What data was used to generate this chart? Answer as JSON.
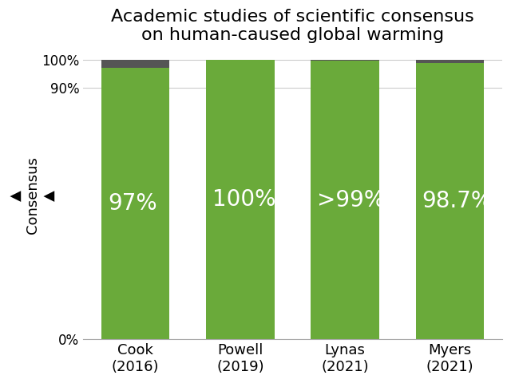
{
  "title": "Academic studies of scientific consensus\non human-caused global warming",
  "categories": [
    "Cook\n(2016)",
    "Powell\n(2019)",
    "Lynas\n(2021)",
    "Myers\n(2021)"
  ],
  "consensus_values": [
    97,
    100,
    99.5,
    98.7
  ],
  "non_consensus_values": [
    3,
    0,
    0.5,
    1.3
  ],
  "bar_labels": [
    "97%",
    "100%",
    ">99%",
    "98.7%"
  ],
  "green_color": "#6aaa3a",
  "dark_color": "#555555",
  "ylabel": "▲\nConsensus\n▲",
  "ytick_labels": [
    "0%",
    "90%",
    "100%"
  ],
  "bar_width": 0.65,
  "label_fontsize": 20,
  "title_fontsize": 16,
  "ylabel_fontsize": 13,
  "tick_fontsize": 12,
  "xtick_fontsize": 13,
  "background_color": "#ffffff",
  "grid_color": "#cccccc",
  "figsize": [
    6.4,
    4.8
  ],
  "dpi": 100
}
